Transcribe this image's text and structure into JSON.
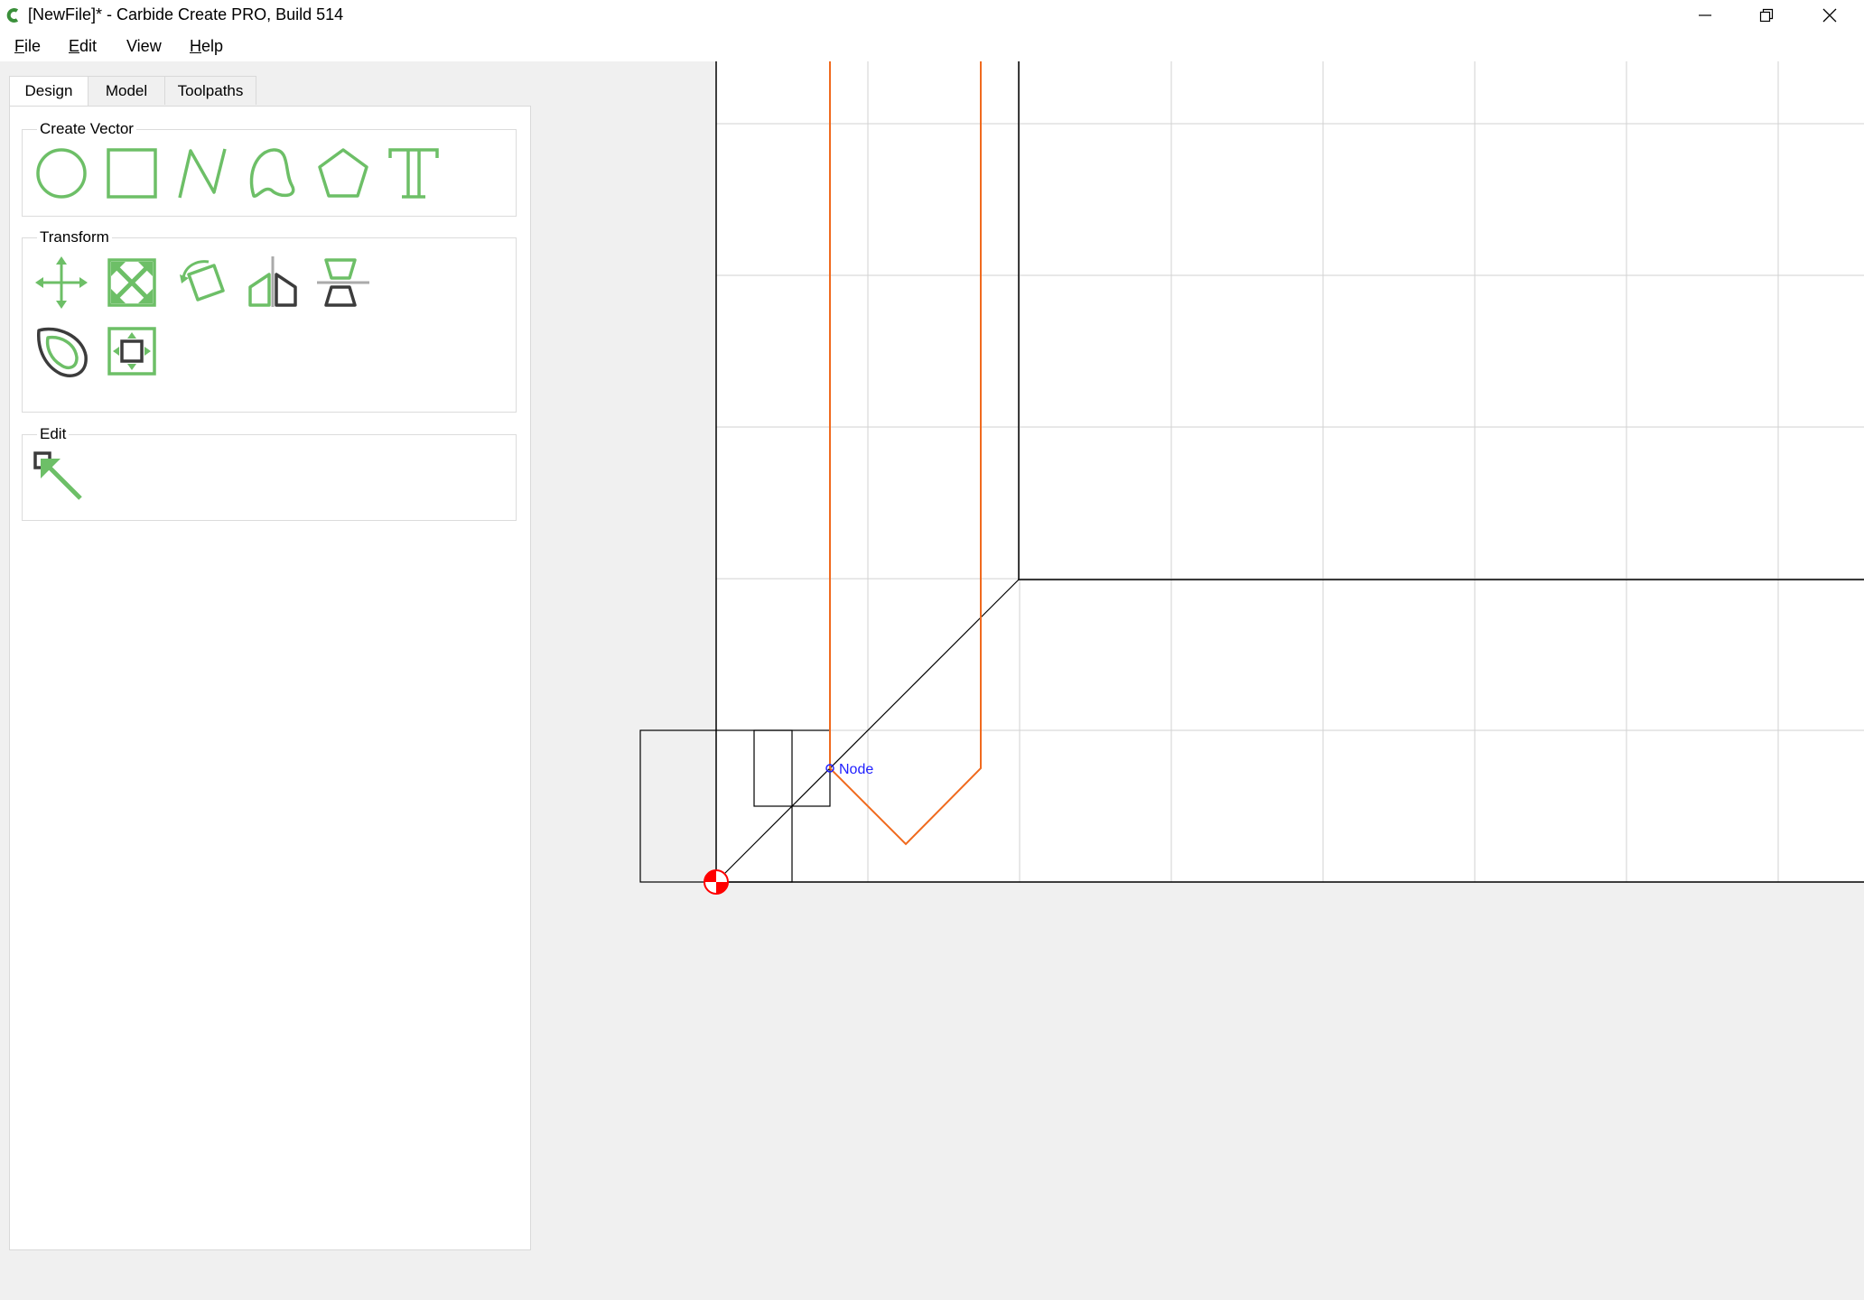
{
  "window": {
    "title": "[NewFile]* - Carbide Create PRO, Build 514",
    "controls": [
      "minimize-icon",
      "restore-icon",
      "close-icon"
    ]
  },
  "menu": {
    "file": {
      "accel": "F",
      "rest": "ile"
    },
    "edit": {
      "accel": "E",
      "rest": "dit"
    },
    "view": {
      "accel": "",
      "rest": "View"
    },
    "help": {
      "accel": "H",
      "rest": "elp"
    }
  },
  "tabs": [
    {
      "label": "Design",
      "active": true
    },
    {
      "label": "Model",
      "active": false
    },
    {
      "label": "Toolpaths",
      "active": false
    }
  ],
  "groups": {
    "create_vector": {
      "title": "Create Vector",
      "tools": [
        "circle-icon",
        "rectangle-icon",
        "polyline-icon",
        "curve-icon",
        "polygon-icon",
        "text-icon"
      ]
    },
    "transform": {
      "title": "Transform",
      "tools": [
        "move-icon",
        "scale-icon",
        "rotate-icon",
        "mirror-icon",
        "flip-icon",
        "offset-icon",
        "align-icon"
      ]
    },
    "edit": {
      "title": "Edit",
      "tools": [
        "select-arrow-icon"
      ]
    }
  },
  "canvas": {
    "node_label": "Node",
    "colors": {
      "grid": "#d2d2d2",
      "geometry": "#000000",
      "toolpath": "#f06a1e",
      "origin": "#ff0000",
      "node": "#2020ff",
      "accent": "#6dbf67"
    }
  }
}
